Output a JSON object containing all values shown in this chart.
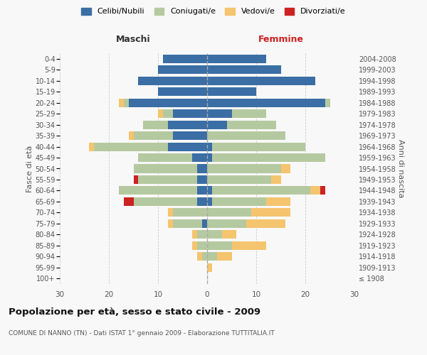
{
  "age_groups": [
    "100+",
    "95-99",
    "90-94",
    "85-89",
    "80-84",
    "75-79",
    "70-74",
    "65-69",
    "60-64",
    "55-59",
    "50-54",
    "45-49",
    "40-44",
    "35-39",
    "30-34",
    "25-29",
    "20-24",
    "15-19",
    "10-14",
    "5-9",
    "0-4"
  ],
  "birth_years": [
    "≤ 1908",
    "1909-1913",
    "1914-1918",
    "1919-1923",
    "1924-1928",
    "1929-1933",
    "1934-1938",
    "1939-1943",
    "1944-1948",
    "1949-1953",
    "1954-1958",
    "1959-1963",
    "1964-1968",
    "1969-1973",
    "1974-1978",
    "1979-1983",
    "1984-1988",
    "1989-1993",
    "1994-1998",
    "1999-2003",
    "2004-2008"
  ],
  "colors": {
    "celibe": "#3a6ea5",
    "coniugato": "#b5c9a0",
    "vedovo": "#f5c46e",
    "divorziato": "#cc2222"
  },
  "maschi": {
    "celibe": [
      0,
      0,
      0,
      0,
      0,
      1,
      0,
      2,
      2,
      2,
      2,
      3,
      8,
      7,
      8,
      7,
      16,
      10,
      14,
      10,
      9
    ],
    "coniugato": [
      0,
      0,
      1,
      2,
      2,
      6,
      7,
      13,
      16,
      12,
      13,
      11,
      15,
      8,
      5,
      2,
      1,
      0,
      0,
      0,
      0
    ],
    "vedovo": [
      0,
      0,
      1,
      1,
      1,
      1,
      1,
      0,
      0,
      0,
      0,
      0,
      1,
      1,
      0,
      1,
      1,
      0,
      0,
      0,
      0
    ],
    "divorziato": [
      0,
      0,
      0,
      0,
      0,
      0,
      0,
      2,
      0,
      1,
      0,
      0,
      0,
      0,
      0,
      0,
      0,
      0,
      0,
      0,
      0
    ]
  },
  "femmine": {
    "celibe": [
      0,
      0,
      0,
      0,
      0,
      0,
      0,
      1,
      1,
      0,
      0,
      1,
      1,
      0,
      4,
      5,
      24,
      10,
      22,
      15,
      12
    ],
    "coniugato": [
      0,
      0,
      2,
      5,
      3,
      8,
      9,
      11,
      20,
      13,
      15,
      23,
      19,
      16,
      10,
      7,
      1,
      0,
      0,
      0,
      0
    ],
    "vedovo": [
      0,
      1,
      3,
      7,
      3,
      8,
      8,
      5,
      2,
      2,
      2,
      0,
      0,
      0,
      0,
      0,
      0,
      0,
      0,
      0,
      0
    ],
    "divorziato": [
      0,
      0,
      0,
      0,
      0,
      0,
      0,
      0,
      1,
      0,
      0,
      0,
      0,
      0,
      0,
      0,
      0,
      0,
      0,
      0,
      0
    ]
  },
  "xlim": 30,
  "title": "Popolazione per età, sesso e stato civile - 2009",
  "subtitle": "COMUNE DI NANNO (TN) - Dati ISTAT 1° gennaio 2009 - Elaborazione TUTTITALIA.IT",
  "ylabel_left": "Fasce di età",
  "ylabel_right": "Anni di nascita",
  "xlabel_maschi": "Maschi",
  "xlabel_femmine": "Femmine",
  "legend_labels": [
    "Celibi/Nubili",
    "Coniugati/e",
    "Vedovi/e",
    "Divorziati/e"
  ],
  "bg_color": "#f8f8f8",
  "grid_color": "#cccccc"
}
